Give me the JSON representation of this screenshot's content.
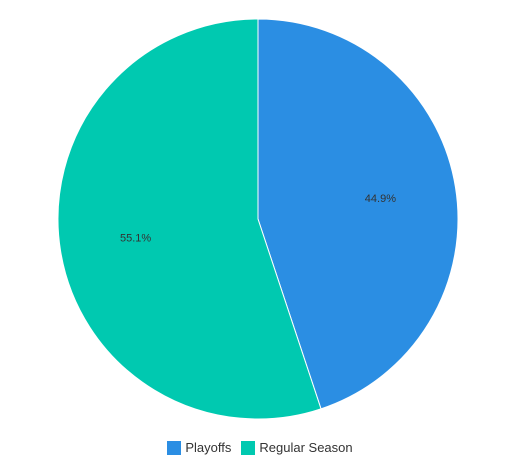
{
  "chart_data": {
    "type": "pie",
    "categories": [
      "Playoffs",
      "Regular Season"
    ],
    "values": [
      44.9,
      55.1
    ],
    "labels": [
      "44.9%",
      "55.1%"
    ],
    "colors": [
      "#2b8ee3",
      "#00c9b0"
    ],
    "legend_position": "bottom-center",
    "start_angle": "top",
    "direction": "clockwise"
  }
}
